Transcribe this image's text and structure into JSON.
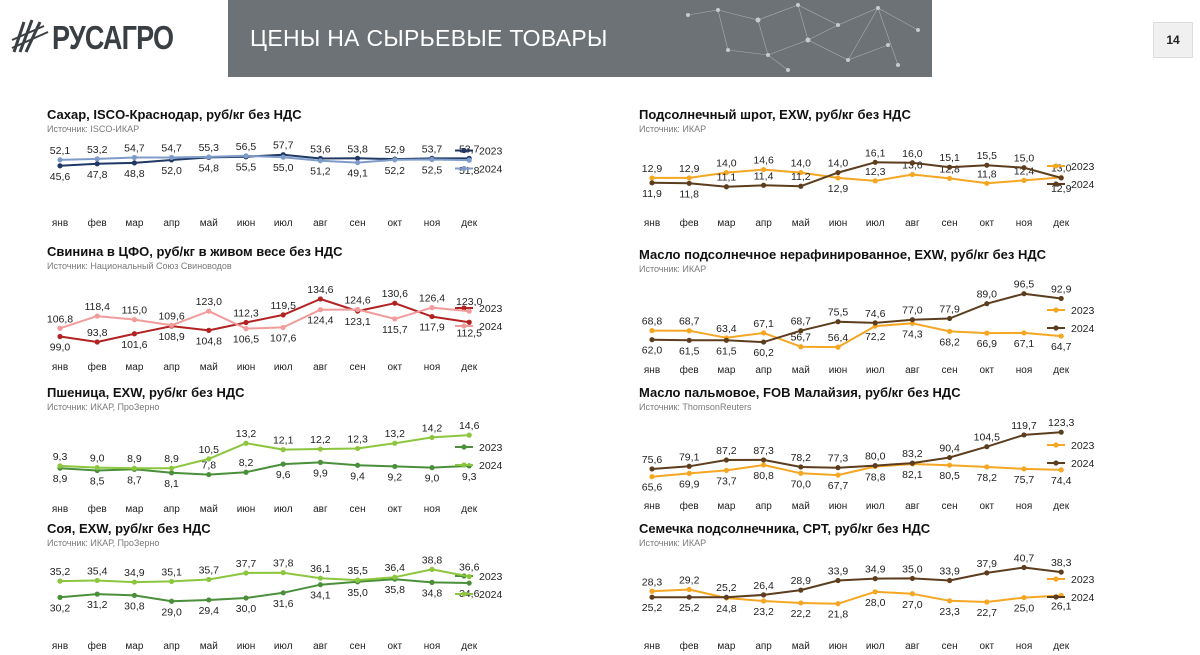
{
  "header": {
    "brand": "РУСАГРО",
    "title": "ЦЕНЫ НА СЫРЬЕВЫЕ ТОВАРЫ",
    "page_number": "14"
  },
  "months": [
    "янв",
    "фев",
    "мар",
    "апр",
    "май",
    "июн",
    "июл",
    "авг",
    "сен",
    "окт",
    "ноя",
    "дек"
  ],
  "colors": {
    "sugar_2023": "#1f3864",
    "sugar_2024": "#7f9cc9",
    "pork_2023": "#b22222",
    "pork_2024": "#f29b9b",
    "green_2023": "#4a8f3a",
    "green_2024": "#8cc63f",
    "orange_2023": "#f5a623",
    "brown_2024": "#5c3d1e"
  },
  "chart_data": [
    {
      "id": "sugar",
      "type": "line",
      "title": "Сахар, ISCO-Краснодар, руб/кг без НДС",
      "source": "Источник: ISCO-ИКАР",
      "ylim": [
        40,
        65
      ],
      "series": [
        {
          "name": "2023",
          "color": "#1f3864",
          "values": [
            45.6,
            47.8,
            48.8,
            52.0,
            54.8,
            55.5,
            57.7,
            53.6,
            53.8,
            52.9,
            53.7,
            53.7
          ],
          "labels": [
            "45,6",
            "47,8",
            "48,8",
            "52,0",
            "54,8",
            "55,5",
            "57,7",
            "53,6",
            "53,8",
            "52,9",
            "53,7",
            "53,7"
          ],
          "label_pos": [
            "below",
            "below",
            "below",
            "below",
            "below",
            "below",
            "above",
            "above",
            "above",
            "above",
            "above",
            "above"
          ]
        },
        {
          "name": "2024",
          "color": "#7f9cc9",
          "values": [
            52.1,
            53.2,
            54.7,
            54.7,
            55.3,
            56.5,
            55.0,
            51.2,
            49.1,
            52.2,
            52.5,
            51.8
          ],
          "labels": [
            "52,1",
            "53,2",
            "54,7",
            "54,7",
            "55,3",
            "56,5",
            "55,0",
            "51,2",
            "49,1",
            "52,2",
            "52,5",
            "51,8"
          ],
          "label_pos": [
            "above",
            "above",
            "above",
            "above",
            "above",
            "above",
            "below",
            "below",
            "below",
            "below",
            "below",
            "below"
          ]
        }
      ]
    },
    {
      "id": "pork",
      "type": "line",
      "title": "Свинина в ЦФО, руб/кг в живом весе без НДС",
      "source": "Источник: Национальный Союз Свиноводов",
      "ylim": [
        90,
        145
      ],
      "series": [
        {
          "name": "2023",
          "color": "#b22222",
          "values": [
            99.0,
            93.8,
            101.6,
            108.9,
            104.8,
            112.3,
            119.5,
            134.6,
            123.1,
            130.6,
            117.9,
            112.5
          ],
          "labels": [
            "99,0",
            "93,8",
            "101,6",
            "108,9",
            "104,8",
            "112,3",
            "119,5",
            "134,6",
            "123,1",
            "130,6",
            "117,9",
            "112,5"
          ],
          "label_pos": [
            "below",
            "above",
            "below",
            "below",
            "below",
            "above",
            "above",
            "above",
            "below",
            "above",
            "below",
            "below"
          ]
        },
        {
          "name": "2024",
          "color": "#f29b9b",
          "values": [
            106.8,
            118.4,
            115.0,
            109.6,
            123.0,
            106.5,
            107.6,
            124.4,
            124.6,
            115.7,
            126.4,
            123.0
          ],
          "labels": [
            "106,8",
            "118,4",
            "115,0",
            "109,6",
            "123,0",
            "106,5",
            "107,6",
            "124,4",
            "124,6",
            "115,7",
            "126,4",
            "123,0"
          ],
          "label_pos": [
            "above",
            "above",
            "above",
            "above",
            "above",
            "below",
            "below",
            "below",
            "above",
            "below",
            "above",
            "above"
          ]
        }
      ]
    },
    {
      "id": "wheat",
      "type": "line",
      "title": "Пшеница, EXW, руб/кг без НДС",
      "source": "Источник: ИКАР, ПроЗерно",
      "ylim": [
        6,
        16
      ],
      "series": [
        {
          "name": "2023",
          "color": "#4a8f3a",
          "values": [
            8.9,
            8.5,
            8.7,
            8.1,
            7.8,
            8.2,
            9.6,
            9.9,
            9.4,
            9.2,
            9.0,
            9.3
          ],
          "labels": [
            "8,9",
            "8,5",
            "8,7",
            "8,1",
            "7,8",
            "8,2",
            "9,6",
            "9,9",
            "9,4",
            "9,2",
            "9,0",
            "9,3"
          ],
          "label_pos": [
            "below",
            "below",
            "below",
            "below",
            "above",
            "above",
            "below",
            "below",
            "below",
            "below",
            "below",
            "below"
          ]
        },
        {
          "name": "2024",
          "color": "#8cc63f",
          "values": [
            9.3,
            9.0,
            8.9,
            8.9,
            10.5,
            13.2,
            12.1,
            12.2,
            12.3,
            13.2,
            14.2,
            14.6
          ],
          "labels": [
            "9,3",
            "9,0",
            "8,9",
            "8,9",
            "10,5",
            "13,2",
            "12,1",
            "12,2",
            "12,3",
            "13,2",
            "14,2",
            "14,6"
          ],
          "label_pos": [
            "above",
            "above",
            "above",
            "above",
            "above",
            "above",
            "above",
            "above",
            "above",
            "above",
            "above",
            "above"
          ]
        }
      ]
    },
    {
      "id": "soy",
      "type": "line",
      "title": "Соя, EXW, руб/кг без НДС",
      "source": "Источник: ИКАР, ПроЗерно",
      "ylim": [
        26,
        42
      ],
      "series": [
        {
          "name": "2023",
          "color": "#4a8f3a",
          "values": [
            30.2,
            31.2,
            30.8,
            29.0,
            29.4,
            30.0,
            31.6,
            34.1,
            35.0,
            35.8,
            34.8,
            34.6
          ],
          "labels": [
            "30,2",
            "31,2",
            "30,8",
            "29,0",
            "29,4",
            "30,0",
            "31,6",
            "34,1",
            "35,0",
            "35,8",
            "34,8",
            "34,6"
          ],
          "label_pos": [
            "below",
            "below",
            "below",
            "below",
            "below",
            "below",
            "below",
            "below",
            "below",
            "below",
            "below",
            "below"
          ]
        },
        {
          "name": "2024",
          "color": "#8cc63f",
          "values": [
            35.2,
            35.4,
            34.9,
            35.1,
            35.7,
            37.7,
            37.8,
            36.1,
            35.5,
            36.4,
            38.8,
            36.6
          ],
          "labels": [
            "35,2",
            "35,4",
            "34,9",
            "35,1",
            "35,7",
            "37,7",
            "37,8",
            "36,1",
            "35,5",
            "36,4",
            "38,8",
            "36,6"
          ],
          "label_pos": [
            "above",
            "above",
            "above",
            "above",
            "above",
            "above",
            "above",
            "above",
            "above",
            "above",
            "above",
            "above"
          ]
        }
      ]
    },
    {
      "id": "meal",
      "type": "line",
      "title": "Подсолнечный шрот, EXW, руб/кг без НДС",
      "source": "Источник: ИКАР",
      "ylim": [
        9,
        18
      ],
      "series": [
        {
          "name": "2023",
          "color": "#f5a623",
          "values": [
            12.9,
            12.9,
            14.0,
            14.6,
            14.0,
            12.9,
            12.3,
            13.6,
            12.8,
            11.8,
            12.4,
            13.0
          ],
          "labels": [
            "12,9",
            "12,9",
            "14,0",
            "14,6",
            "14,0",
            "12,9",
            "12,3",
            "13,6",
            "12,8",
            "11,8",
            "12,4",
            "13,0"
          ],
          "label_pos": [
            "above",
            "above",
            "above",
            "above",
            "above",
            "below",
            "above",
            "above",
            "above",
            "above",
            "above",
            "above"
          ]
        },
        {
          "name": "2024",
          "color": "#5c3d1e",
          "values": [
            11.9,
            11.8,
            11.1,
            11.4,
            11.2,
            14.0,
            16.1,
            16.0,
            15.1,
            15.5,
            15.0,
            12.9
          ],
          "labels": [
            "11,9",
            "11,8",
            "11,1",
            "11,4",
            "11,2",
            "14,0",
            "16,1",
            "16,0",
            "15,1",
            "15,5",
            "15,0",
            "12,9"
          ],
          "label_pos": [
            "below",
            "below",
            "above",
            "above",
            "above",
            "above",
            "above",
            "above",
            "above",
            "above",
            "above",
            "below"
          ]
        }
      ]
    },
    {
      "id": "sunoil",
      "type": "line",
      "title": "Масло подсолнечное нерафинированное, EXW, руб/кг без НДС",
      "source": "Источник: ИКАР",
      "ylim": [
        55,
        100
      ],
      "series": [
        {
          "name": "2023",
          "color": "#f5a623",
          "values": [
            68.8,
            68.7,
            63.4,
            67.1,
            56.7,
            56.4,
            72.2,
            74.3,
            68.2,
            66.9,
            67.1,
            64.7
          ],
          "labels": [
            "68,8",
            "68,7",
            "63,4",
            "67,1",
            "56,7",
            "56,4",
            "72,2",
            "74,3",
            "68,2",
            "66,9",
            "67,1",
            "64,7"
          ],
          "label_pos": [
            "above",
            "above",
            "above",
            "above",
            "above",
            "above",
            "below",
            "below",
            "below",
            "below",
            "below",
            "below"
          ]
        },
        {
          "name": "2024",
          "color": "#5c3d1e",
          "values": [
            62.0,
            61.5,
            61.5,
            60.2,
            68.7,
            75.5,
            74.6,
            77.0,
            77.9,
            89.0,
            96.5,
            92.9
          ],
          "labels": [
            "62,0",
            "61,5",
            "61,5",
            "60,2",
            "68,7",
            "75,5",
            "74,6",
            "77,0",
            "77,9",
            "89,0",
            "96,5",
            "92,9"
          ],
          "label_pos": [
            "below",
            "below",
            "below",
            "below",
            "above",
            "above",
            "above",
            "above",
            "above",
            "above",
            "above",
            "above"
          ]
        }
      ]
    },
    {
      "id": "palm",
      "type": "line",
      "title": "Масло пальмовое, FOB Малайзия, руб/кг без НДС",
      "source": "Источник: ThomsonReuters",
      "ylim": [
        60,
        130
      ],
      "series": [
        {
          "name": "2023",
          "color": "#f5a623",
          "values": [
            65.6,
            69.9,
            73.7,
            80.8,
            70.0,
            67.7,
            78.8,
            82.1,
            80.5,
            78.2,
            75.7,
            74.4
          ],
          "labels": [
            "65,6",
            "69,9",
            "73,7",
            "80,8",
            "70,0",
            "67,7",
            "78,8",
            "82,1",
            "80,5",
            "78,2",
            "75,7",
            "74,4"
          ],
          "label_pos": [
            "below",
            "below",
            "below",
            "below",
            "below",
            "below",
            "below",
            "below",
            "below",
            "below",
            "below",
            "below"
          ]
        },
        {
          "name": "2024",
          "color": "#5c3d1e",
          "values": [
            75.6,
            79.1,
            87.2,
            87.3,
            78.2,
            77.3,
            80.0,
            83.2,
            90.4,
            104.5,
            119.7,
            123.3
          ],
          "labels": [
            "75,6",
            "79,1",
            "87,2",
            "87,3",
            "78,2",
            "77,3",
            "80,0",
            "83,2",
            "90,4",
            "104,5",
            "119,7",
            "123,3"
          ],
          "label_pos": [
            "above",
            "above",
            "above",
            "above",
            "above",
            "above",
            "above",
            "above",
            "above",
            "above",
            "above",
            "above"
          ]
        }
      ]
    },
    {
      "id": "seed",
      "type": "line",
      "title": "Семечка подсолнечника, CPT, руб/кг без НДС",
      "source": "Источник: ИКАР",
      "ylim": [
        18,
        42
      ],
      "series": [
        {
          "name": "2023",
          "color": "#f5a623",
          "values": [
            28.3,
            29.2,
            24.8,
            23.2,
            22.2,
            21.8,
            28.0,
            27.0,
            23.3,
            22.7,
            25.0,
            26.1
          ],
          "labels": [
            "28,3",
            "29,2",
            "24,8",
            "23,2",
            "22,2",
            "21,8",
            "28,0",
            "27,0",
            "23,3",
            "22,7",
            "25,0",
            "26,1"
          ],
          "label_pos": [
            "above",
            "above",
            "below",
            "below",
            "below",
            "below",
            "below",
            "below",
            "below",
            "below",
            "below",
            "below"
          ]
        },
        {
          "name": "2024",
          "color": "#5c3d1e",
          "values": [
            25.2,
            25.2,
            25.2,
            26.4,
            28.9,
            33.9,
            34.9,
            35.0,
            33.9,
            37.9,
            40.7,
            38.3
          ],
          "labels": [
            "25,2",
            "25,2",
            "25,2",
            "26,4",
            "28,9",
            "33,9",
            "34,9",
            "35,0",
            "33,9",
            "37,9",
            "40,7",
            "38,3"
          ],
          "label_pos": [
            "below",
            "below",
            "above",
            "above",
            "above",
            "above",
            "above",
            "above",
            "above",
            "above",
            "above",
            "above"
          ]
        }
      ]
    }
  ]
}
